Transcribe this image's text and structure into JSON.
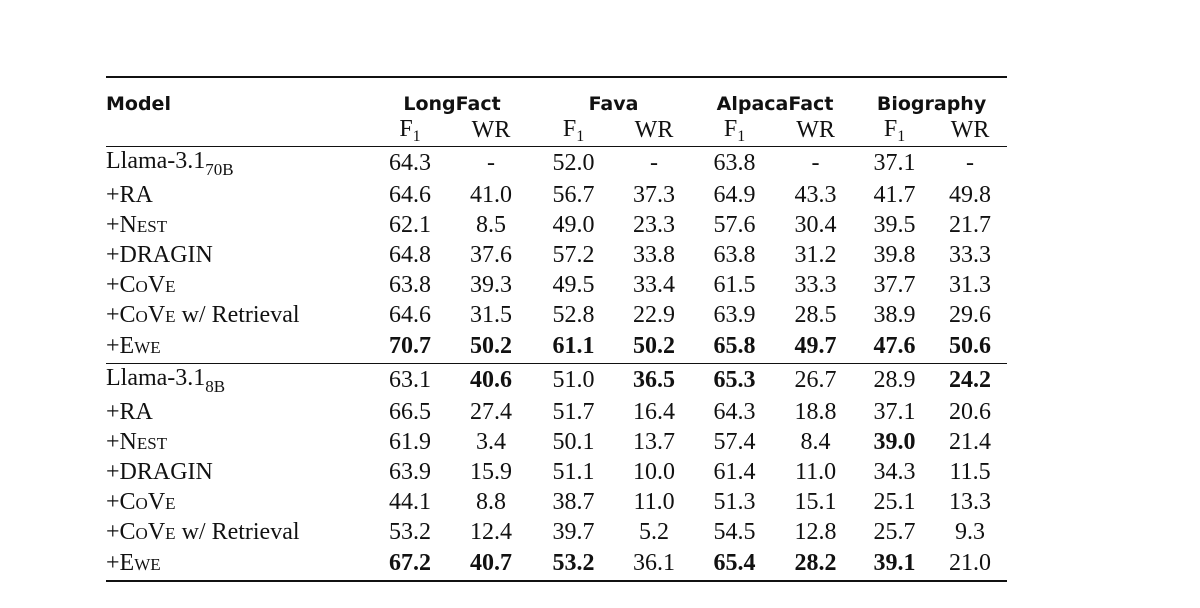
{
  "table": {
    "model_header": "Model",
    "groups": [
      "LongFact",
      "Fava",
      "AlpacaFact",
      "Biography"
    ],
    "metric_base": "F",
    "metric_sub": "1",
    "metric_wr": "WR",
    "sections": [
      {
        "rows": [
          {
            "prefix": "",
            "name": "Llama-3.1",
            "sub": "70B",
            "values": [
              "64.3",
              "-",
              "52.0",
              "-",
              "63.8",
              "-",
              "37.1",
              "-"
            ],
            "bold": [
              false,
              false,
              false,
              false,
              false,
              false,
              false,
              false
            ]
          },
          {
            "prefix": "+",
            "name": "RA",
            "values": [
              "64.6",
              "41.0",
              "56.7",
              "37.3",
              "64.9",
              "43.3",
              "41.7",
              "49.8"
            ],
            "bold": [
              false,
              false,
              false,
              false,
              false,
              false,
              false,
              false
            ]
          },
          {
            "prefix": "+",
            "name": "Nest",
            "values": [
              "62.1",
              "8.5",
              "49.0",
              "23.3",
              "57.6",
              "30.4",
              "39.5",
              "21.7"
            ],
            "bold": [
              false,
              false,
              false,
              false,
              false,
              false,
              false,
              false
            ]
          },
          {
            "prefix": "+",
            "name": "DRAGIN",
            "values": [
              "64.8",
              "37.6",
              "57.2",
              "33.8",
              "63.8",
              "31.2",
              "39.8",
              "33.3"
            ],
            "bold": [
              false,
              false,
              false,
              false,
              false,
              false,
              false,
              false
            ]
          },
          {
            "prefix": "+",
            "name": "CoVe",
            "values": [
              "63.8",
              "39.3",
              "49.5",
              "33.4",
              "61.5",
              "33.3",
              "37.7",
              "31.3"
            ],
            "bold": [
              false,
              false,
              false,
              false,
              false,
              false,
              false,
              false
            ]
          },
          {
            "prefix": "+",
            "name": "CoVe",
            "suffix": " w/ Retrieval",
            "values": [
              "64.6",
              "31.5",
              "52.8",
              "22.9",
              "63.9",
              "28.5",
              "38.9",
              "29.6"
            ],
            "bold": [
              false,
              false,
              false,
              false,
              false,
              false,
              false,
              false
            ]
          },
          {
            "prefix": "+",
            "name": "Ewe",
            "values": [
              "70.7",
              "50.2",
              "61.1",
              "50.2",
              "65.8",
              "49.7",
              "47.6",
              "50.6"
            ],
            "bold": [
              true,
              true,
              true,
              true,
              true,
              true,
              true,
              true
            ]
          }
        ]
      },
      {
        "rows": [
          {
            "prefix": "",
            "name": "Llama-3.1",
            "sub": "8B",
            "values": [
              "63.1",
              "40.6",
              "51.0",
              "36.5",
              "65.3",
              "26.7",
              "28.9",
              "24.2"
            ],
            "bold": [
              false,
              true,
              false,
              true,
              true,
              false,
              false,
              true
            ]
          },
          {
            "prefix": "+",
            "name": "RA",
            "values": [
              "66.5",
              "27.4",
              "51.7",
              "16.4",
              "64.3",
              "18.8",
              "37.1",
              "20.6"
            ],
            "bold": [
              false,
              false,
              false,
              false,
              false,
              false,
              false,
              false
            ]
          },
          {
            "prefix": "+",
            "name": "Nest",
            "values": [
              "61.9",
              "3.4",
              "50.1",
              "13.7",
              "57.4",
              "8.4",
              "39.0",
              "21.4"
            ],
            "bold": [
              false,
              false,
              false,
              false,
              false,
              false,
              true,
              false
            ]
          },
          {
            "prefix": "+",
            "name": "DRAGIN",
            "values": [
              "63.9",
              "15.9",
              "51.1",
              "10.0",
              "61.4",
              "11.0",
              "34.3",
              "11.5"
            ],
            "bold": [
              false,
              false,
              false,
              false,
              false,
              false,
              false,
              false
            ]
          },
          {
            "prefix": "+",
            "name": "CoVe",
            "values": [
              "44.1",
              "8.8",
              "38.7",
              "11.0",
              "51.3",
              "15.1",
              "25.1",
              "13.3"
            ],
            "bold": [
              false,
              false,
              false,
              false,
              false,
              false,
              false,
              false
            ]
          },
          {
            "prefix": "+",
            "name": "CoVe",
            "suffix": " w/ Retrieval",
            "values": [
              "53.2",
              "12.4",
              "39.7",
              "5.2",
              "54.5",
              "12.8",
              "25.7",
              "9.3"
            ],
            "bold": [
              false,
              false,
              false,
              false,
              false,
              false,
              false,
              false
            ]
          },
          {
            "prefix": "+",
            "name": "Ewe",
            "values": [
              "67.2",
              "40.7",
              "53.2",
              "36.1",
              "65.4",
              "28.2",
              "39.1",
              "21.0"
            ],
            "bold": [
              true,
              true,
              true,
              false,
              true,
              true,
              true,
              false
            ]
          }
        ]
      }
    ]
  }
}
